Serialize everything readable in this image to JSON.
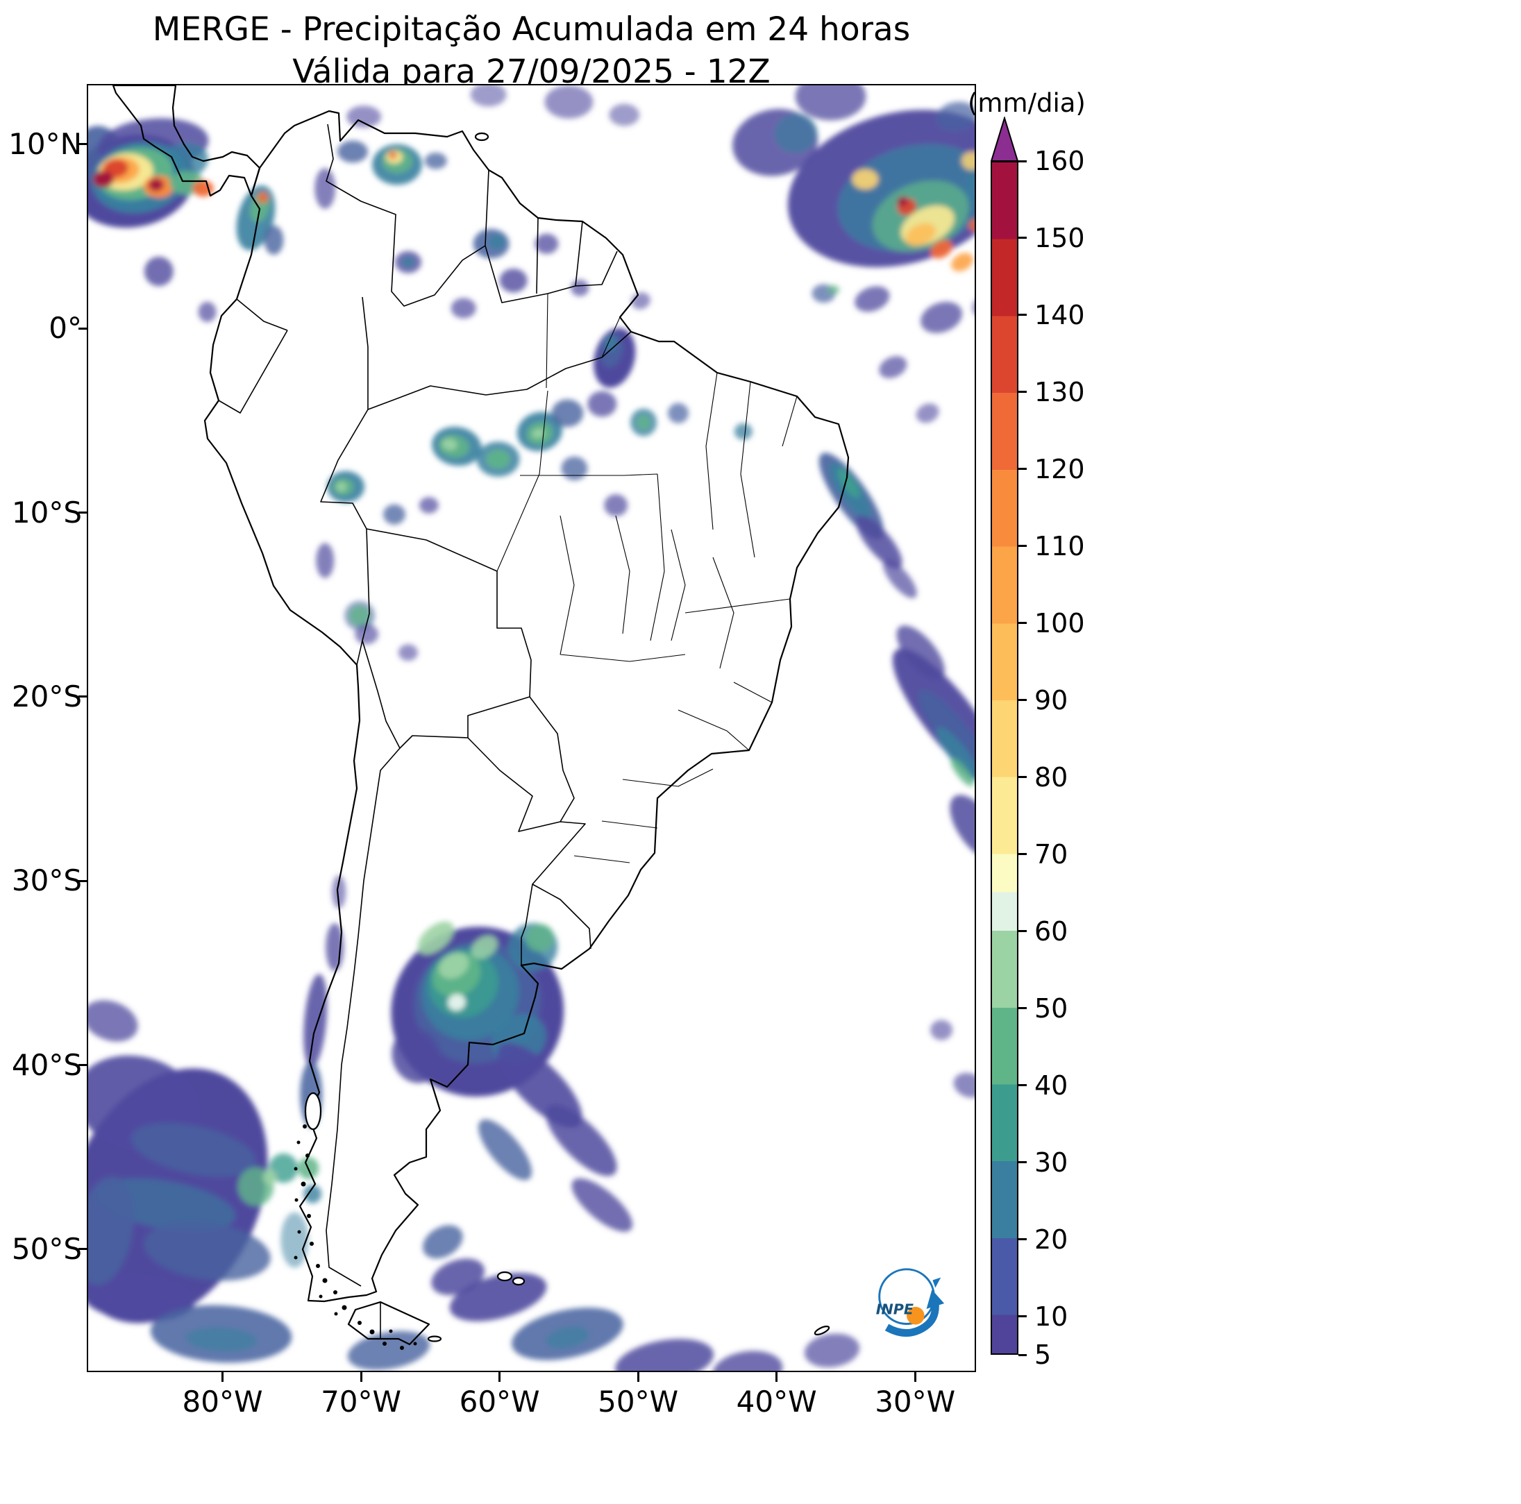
{
  "title": {
    "line1": "MERGE - Precipitação Acumulada em 24 horas",
    "line2": "Válida para 27/09/2025 - 12Z"
  },
  "logo": {
    "text": "INPE"
  },
  "map": {
    "extent": {
      "lon_min": -89.7,
      "lon_max": -25.7,
      "lat_min": -56.6,
      "lat_max": 13.2
    },
    "lat_ticks": [
      {
        "label": "10°N",
        "lat": 10
      },
      {
        "label": "0°",
        "lat": 0
      },
      {
        "label": "10°S",
        "lat": -10
      },
      {
        "label": "20°S",
        "lat": -20
      },
      {
        "label": "30°S",
        "lat": -30
      },
      {
        "label": "40°S",
        "lat": -40
      },
      {
        "label": "50°S",
        "lat": -50
      }
    ],
    "lon_ticks": [
      {
        "label": "80°W",
        "lon": -80
      },
      {
        "label": "70°W",
        "lon": -70
      },
      {
        "label": "60°W",
        "lon": -60
      },
      {
        "label": "50°W",
        "lon": -50
      },
      {
        "label": "40°W",
        "lon": -40
      },
      {
        "label": "30°W",
        "lon": -30
      }
    ]
  },
  "colorbar": {
    "unit_label": "(mm/dia)",
    "vmin": 5,
    "vmax": 160,
    "tick_values": [
      160,
      150,
      140,
      130,
      120,
      110,
      100,
      90,
      80,
      70,
      60,
      50,
      40,
      30,
      20,
      10,
      5
    ],
    "over_color": "#8c2d91",
    "segments": [
      {
        "from": 5,
        "to": 10,
        "color": "#4f4499"
      },
      {
        "from": 10,
        "to": 20,
        "color": "#4a5aa8"
      },
      {
        "from": 20,
        "to": 30,
        "color": "#3a7fa0"
      },
      {
        "from": 30,
        "to": 40,
        "color": "#3c9d8f"
      },
      {
        "from": 40,
        "to": 50,
        "color": "#5fb588"
      },
      {
        "from": 50,
        "to": 60,
        "color": "#9cd3a4"
      },
      {
        "from": 60,
        "to": 65,
        "color": "#e1f3e5"
      },
      {
        "from": 65,
        "to": 70,
        "color": "#fbfbc3"
      },
      {
        "from": 70,
        "to": 80,
        "color": "#fdea94"
      },
      {
        "from": 80,
        "to": 90,
        "color": "#fdd572"
      },
      {
        "from": 90,
        "to": 100,
        "color": "#fdbd59"
      },
      {
        "from": 100,
        "to": 110,
        "color": "#fca448"
      },
      {
        "from": 110,
        "to": 120,
        "color": "#f98b3d"
      },
      {
        "from": 120,
        "to": 130,
        "color": "#ef6a37"
      },
      {
        "from": 130,
        "to": 140,
        "color": "#dc462f"
      },
      {
        "from": 140,
        "to": 150,
        "color": "#c32728"
      },
      {
        "from": 150,
        "to": 160,
        "color": "#a3123e"
      }
    ]
  },
  "palette": {
    "b1": "#4f4a9e",
    "b2": "#47619f",
    "t": "#38809f",
    "tg": "#3c9d8f",
    "g": "#5fb588",
    "lg": "#9cd3a4",
    "pc": "#e8f6ef",
    "py": "#fbfbc3",
    "y": "#fdea94",
    "yo": "#fdd572",
    "o": "#fdbd59",
    "do": "#fca448",
    "ro": "#f98b3d",
    "r1": "#ef6a37",
    "r2": "#dc462f",
    "r3": "#c32728",
    "dr": "#a3123e",
    "mg": "#8c2d91"
  },
  "precipitation": [
    [
      -86.5,
      8.0,
      9,
      5,
      -10,
      "b1",
      1
    ],
    [
      -89.0,
      9.5,
      3.5,
      3,
      0,
      "b2",
      0.9
    ],
    [
      -85.0,
      10.0,
      8,
      2.8,
      -5,
      "b1",
      0.85
    ],
    [
      -83.0,
      9.0,
      4,
      2,
      -15,
      "t",
      0.8
    ],
    [
      -86.0,
      8.2,
      7,
      3.8,
      -10,
      "t",
      0.95
    ],
    [
      -86.3,
      8.4,
      5.5,
      2.8,
      -10,
      "g",
      0.95
    ],
    [
      -87.0,
      8.5,
      4,
      2,
      -5,
      "y",
      0.95
    ],
    [
      -87.4,
      8.6,
      2.8,
      1.4,
      -5,
      "do",
      0.95
    ],
    [
      -87.7,
      8.7,
      1.8,
      1.0,
      -5,
      "r2",
      1
    ],
    [
      -88.6,
      8.1,
      1.5,
      0.9,
      0,
      "dr",
      1
    ],
    [
      -84.6,
      7.7,
      2.2,
      1.2,
      0,
      "ro",
      1
    ],
    [
      -84.8,
      7.8,
      1.1,
      0.7,
      0,
      "dr",
      1
    ],
    [
      -82.6,
      7.9,
      2.5,
      1.3,
      0,
      "g",
      0.9
    ],
    [
      -81.4,
      7.6,
      1.5,
      0.9,
      0,
      "r1",
      0.95
    ],
    [
      -77.6,
      6.0,
      2.6,
      3.6,
      15,
      "t",
      0.9
    ],
    [
      -77.3,
      6.6,
      1.3,
      1.7,
      15,
      "g",
      0.9
    ],
    [
      -77.1,
      7.1,
      0.8,
      0.6,
      0,
      "r1",
      0.9
    ],
    [
      -76.3,
      4.8,
      1.4,
      1.6,
      0,
      "b2",
      0.8
    ],
    [
      -84.6,
      3.1,
      2.1,
      1.6,
      0,
      "b1",
      0.8
    ],
    [
      -81.1,
      0.9,
      1.3,
      1.1,
      0,
      "b1",
      0.7
    ],
    [
      -67.4,
      8.9,
      3.6,
      2.2,
      0,
      "t",
      0.9
    ],
    [
      -67.4,
      9.1,
      2.2,
      1.3,
      0,
      "g",
      0.9
    ],
    [
      -67.6,
      9.3,
      1.2,
      0.7,
      0,
      "y",
      0.95
    ],
    [
      -67.7,
      9.4,
      0.6,
      0.4,
      0,
      "r1",
      0.95
    ],
    [
      -70.6,
      9.6,
      2.2,
      1.2,
      0,
      "b2",
      0.8
    ],
    [
      -64.6,
      9.1,
      1.6,
      0.9,
      0,
      "b2",
      0.75
    ],
    [
      -72.6,
      7.6,
      1.5,
      2.2,
      0,
      "b1",
      0.7
    ],
    [
      -69.8,
      11.5,
      2.5,
      1.2,
      0,
      "b1",
      0.6
    ],
    [
      -60.6,
      4.6,
      2.6,
      1.6,
      0,
      "b2",
      0.85
    ],
    [
      -60.2,
      4.7,
      1.2,
      0.8,
      0,
      "t",
      0.8
    ],
    [
      -59.0,
      2.6,
      2.0,
      1.3,
      0,
      "b1",
      0.8
    ],
    [
      -56.6,
      4.6,
      1.7,
      1.1,
      0,
      "b1",
      0.75
    ],
    [
      -62.6,
      1.1,
      1.8,
      1.1,
      0,
      "b1",
      0.7
    ],
    [
      -66.6,
      3.6,
      1.9,
      1.2,
      0,
      "b1",
      0.8
    ],
    [
      -66.6,
      3.6,
      0.9,
      0.6,
      0,
      "t",
      0.8
    ],
    [
      -55.0,
      12.3,
      3.5,
      1.8,
      0,
      "b1",
      0.6
    ],
    [
      -60.8,
      12.7,
      2.6,
      1.3,
      0,
      "b1",
      0.55
    ],
    [
      -51.0,
      11.6,
      2.2,
      1.2,
      0,
      "b1",
      0.55
    ],
    [
      -51.7,
      -1.6,
      2.9,
      3.3,
      15,
      "b1",
      1
    ],
    [
      -51.9,
      -1.2,
      1.6,
      1.9,
      15,
      "b2",
      0.9
    ],
    [
      -52.0,
      -0.8,
      0.8,
      0.9,
      0,
      "t",
      0.8
    ],
    [
      -54.2,
      2.2,
      1.3,
      0.9,
      0,
      "b1",
      0.7
    ],
    [
      -49.8,
      1.5,
      1.4,
      0.9,
      -20,
      "b1",
      0.6
    ],
    [
      -63.1,
      -6.4,
      3.6,
      2.1,
      10,
      "t",
      0.9
    ],
    [
      -63.3,
      -6.4,
      2.2,
      1.2,
      10,
      "g",
      0.9
    ],
    [
      -63.6,
      -6.3,
      1.1,
      0.6,
      10,
      "lg",
      0.95
    ],
    [
      -60.1,
      -7.1,
      3.1,
      1.9,
      0,
      "t",
      0.85
    ],
    [
      -60.1,
      -7.1,
      1.7,
      1.0,
      0,
      "g",
      0.9
    ],
    [
      -57.1,
      -5.6,
      3.3,
      2.1,
      -15,
      "t",
      0.9
    ],
    [
      -57.1,
      -5.7,
      1.9,
      1.2,
      -15,
      "g",
      0.9
    ],
    [
      -57.2,
      -5.7,
      0.9,
      0.5,
      -15,
      "lg",
      0.95
    ],
    [
      -55.1,
      -4.6,
      2.3,
      1.5,
      0,
      "b2",
      0.8
    ],
    [
      -52.6,
      -4.1,
      2.1,
      1.4,
      0,
      "b1",
      0.75
    ],
    [
      -54.6,
      -7.6,
      1.9,
      1.3,
      0,
      "b2",
      0.75
    ],
    [
      -51.6,
      -9.6,
      1.7,
      1.2,
      0,
      "b1",
      0.7
    ],
    [
      -49.6,
      -5.1,
      1.9,
      1.5,
      0,
      "t",
      0.8
    ],
    [
      -49.6,
      -5.1,
      1.0,
      0.8,
      0,
      "g",
      0.8
    ],
    [
      -47.1,
      -4.6,
      1.5,
      1.1,
      0,
      "b2",
      0.7
    ],
    [
      -42.4,
      -5.6,
      1.3,
      0.9,
      0,
      "t",
      0.75
    ],
    [
      -71.1,
      -8.6,
      2.7,
      1.7,
      0,
      "t",
      0.9
    ],
    [
      -71.3,
      -8.6,
      1.5,
      0.9,
      0,
      "g",
      0.9
    ],
    [
      -71.4,
      -8.6,
      0.7,
      0.5,
      0,
      "lg",
      0.95
    ],
    [
      -67.6,
      -10.1,
      1.6,
      1.1,
      0,
      "b2",
      0.75
    ],
    [
      -65.1,
      -9.6,
      1.4,
      0.9,
      0,
      "b1",
      0.7
    ],
    [
      -72.6,
      -12.6,
      1.3,
      1.9,
      0,
      "b1",
      0.7
    ],
    [
      -70.1,
      -15.6,
      2.2,
      1.6,
      0,
      "b2",
      0.6
    ],
    [
      -70.1,
      -15.6,
      1.5,
      1.1,
      0,
      "g",
      0.8
    ],
    [
      -69.6,
      -16.6,
      1.7,
      1.1,
      0,
      "b1",
      0.65
    ],
    [
      -66.6,
      -17.6,
      1.4,
      0.9,
      0,
      "b1",
      0.6
    ],
    [
      -34.6,
      -9.1,
      2.3,
      5.6,
      -35,
      "b2",
      0.9
    ],
    [
      -34.7,
      -8.8,
      1.5,
      3.6,
      -35,
      "t",
      0.9
    ],
    [
      -34.8,
      -8.4,
      0.9,
      1.9,
      -35,
      "tg",
      0.95
    ],
    [
      -32.6,
      -11.6,
      1.7,
      3.6,
      -40,
      "b1",
      0.85
    ],
    [
      -31.1,
      -13.6,
      1.3,
      2.6,
      -40,
      "b1",
      0.7
    ],
    [
      -27.6,
      -21.1,
      3.6,
      9.2,
      -38,
      "b1",
      0.95
    ],
    [
      -27.1,
      -22.1,
      2.1,
      6.2,
      -38,
      "b2",
      0.85
    ],
    [
      -26.9,
      -23.1,
      1.3,
      3.6,
      -38,
      "t",
      0.85
    ],
    [
      -26.6,
      -24.1,
      0.8,
      1.9,
      -38,
      "g",
      0.85
    ],
    [
      -29.6,
      -17.6,
      2.1,
      3.6,
      -40,
      "b1",
      0.8
    ],
    [
      -25.6,
      -27.1,
      2.6,
      4.1,
      -35,
      "b1",
      0.85
    ],
    [
      -28.1,
      -38.1,
      1.6,
      1.1,
      0,
      "b1",
      0.6
    ],
    [
      -26.1,
      -41.1,
      2.3,
      1.3,
      20,
      "b1",
      0.65
    ],
    [
      -61.6,
      -37.1,
      12.5,
      9.2,
      -20,
      "b1",
      1
    ],
    [
      -61.6,
      -36.6,
      9.2,
      6.6,
      -20,
      "b2",
      0.9
    ],
    [
      -62.1,
      -36.1,
      7.1,
      5.1,
      -25,
      "t",
      0.85
    ],
    [
      -62.6,
      -35.6,
      5.1,
      3.6,
      -30,
      "tg",
      0.85
    ],
    [
      -63.1,
      -35.1,
      3.6,
      2.3,
      -30,
      "g",
      0.9
    ],
    [
      -63.3,
      -34.6,
      2.3,
      1.3,
      -30,
      "lg",
      0.95
    ],
    [
      -63.1,
      -36.6,
      1.3,
      0.9,
      -20,
      "pc",
      0.95
    ],
    [
      -64.6,
      -33.1,
      3.1,
      1.3,
      -40,
      "lg",
      0.9
    ],
    [
      -61.1,
      -33.6,
      2.1,
      1.1,
      -35,
      "lg",
      0.85
    ],
    [
      -57.6,
      -33.6,
      3.6,
      2.6,
      -20,
      "t",
      0.8
    ],
    [
      -57.1,
      -33.1,
      2.1,
      1.5,
      -20,
      "g",
      0.8
    ],
    [
      -58.6,
      -38.6,
      4.1,
      2.6,
      -30,
      "t",
      0.8
    ],
    [
      -57.1,
      -41.1,
      3.1,
      6.1,
      -45,
      "b1",
      0.9
    ],
    [
      -54.1,
      -44.1,
      2.6,
      5.1,
      -45,
      "b1",
      0.85
    ],
    [
      -59.6,
      -44.6,
      2.1,
      4.1,
      -40,
      "b2",
      0.8
    ],
    [
      -52.6,
      -47.6,
      2.1,
      4.1,
      -50,
      "b1",
      0.8
    ],
    [
      -66.0,
      -39.5,
      3.5,
      3.0,
      -20,
      "b1",
      0.85
    ],
    [
      -73.3,
      -37.6,
      1.6,
      5.1,
      5,
      "b1",
      0.85
    ],
    [
      -73.6,
      -41.6,
      1.6,
      3.6,
      0,
      "b2",
      0.85
    ],
    [
      -73.5,
      -42.6,
      0.9,
      1.6,
      0,
      "t",
      0.85
    ],
    [
      -71.9,
      -33.6,
      1.3,
      2.6,
      0,
      "b1",
      0.75
    ],
    [
      -71.6,
      -30.6,
      1.0,
      1.8,
      0,
      "b1",
      0.6
    ],
    [
      -84.1,
      -47.1,
      13.5,
      14.5,
      25,
      "b1",
      1
    ],
    [
      -86.1,
      -42.1,
      9.2,
      5.1,
      15,
      "b1",
      0.9
    ],
    [
      -82.1,
      -44.6,
      9.2,
      2.6,
      12,
      "b2",
      0.8
    ],
    [
      -84.1,
      -47.6,
      10.2,
      2.6,
      10,
      "t",
      0.55
    ],
    [
      -81.1,
      -50.1,
      9.2,
      3.1,
      8,
      "b2",
      0.8
    ],
    [
      -77.6,
      -46.6,
      2.6,
      2.1,
      0,
      "g",
      0.8
    ],
    [
      -75.6,
      -45.6,
      2.1,
      1.6,
      0,
      "tg",
      0.8
    ],
    [
      -76.6,
      -46.1,
      1.0,
      0.8,
      0,
      "lg",
      0.85
    ],
    [
      -73.8,
      -45.6,
      1.5,
      1.2,
      0,
      "g",
      0.85
    ],
    [
      -73.5,
      -47.0,
      1.3,
      1.0,
      0,
      "t",
      0.8
    ],
    [
      -86.1,
      -52.6,
      8.2,
      2.6,
      5,
      "b1",
      0.9
    ],
    [
      -80.1,
      -54.6,
      10.2,
      3.1,
      3,
      "b2",
      0.85
    ],
    [
      -80.1,
      -54.9,
      5.1,
      1.3,
      3,
      "t",
      0.6
    ],
    [
      -88.1,
      -37.6,
      4.1,
      2.1,
      20,
      "b1",
      0.75
    ],
    [
      -88.5,
      -49.0,
      4.0,
      6.0,
      10,
      "b2",
      0.85
    ],
    [
      -74.8,
      -49.5,
      2.0,
      3.0,
      0,
      "t",
      0.5
    ],
    [
      -68.0,
      -55.5,
      6.0,
      2.0,
      -10,
      "b2",
      0.8
    ],
    [
      -63.0,
      -51.5,
      4.0,
      1.8,
      -20,
      "b1",
      0.85
    ],
    [
      -60.1,
      -52.6,
      7.2,
      2.3,
      -15,
      "b1",
      0.9
    ],
    [
      -55.1,
      -54.6,
      8.2,
      2.6,
      -12,
      "b2",
      0.85
    ],
    [
      -48.1,
      -56.1,
      7.2,
      2.3,
      -10,
      "b1",
      0.85
    ],
    [
      -64.1,
      -49.6,
      3.1,
      1.6,
      -30,
      "b2",
      0.8
    ],
    [
      -55.1,
      -54.8,
      3.1,
      1.1,
      -12,
      "t",
      0.6
    ],
    [
      -42.1,
      -56.6,
      5.1,
      2.1,
      -8,
      "b1",
      0.8
    ],
    [
      -36.0,
      -55.5,
      4.0,
      1.8,
      -8,
      "b1",
      0.7
    ],
    [
      -31.1,
      7.6,
      16.5,
      8.2,
      -15,
      "b1",
      0.95
    ],
    [
      -30.1,
      7.1,
      11.2,
      5.6,
      -15,
      "t",
      0.75
    ],
    [
      -29.6,
      6.1,
      7.2,
      3.6,
      -20,
      "g",
      0.75
    ],
    [
      -29.1,
      5.6,
      4.1,
      1.9,
      -25,
      "y",
      0.9
    ],
    [
      -29.6,
      5.1,
      2.3,
      1.1,
      -25,
      "o",
      0.9
    ],
    [
      -30.6,
      6.6,
      1.4,
      0.9,
      -20,
      "r2",
      0.95
    ],
    [
      -28.1,
      4.3,
      1.7,
      0.9,
      -30,
      "r1",
      0.95
    ],
    [
      -30.9,
      6.9,
      0.8,
      0.5,
      -20,
      "dr",
      1
    ],
    [
      -33.6,
      8.1,
      1.9,
      1.1,
      0,
      "yo",
      0.9
    ],
    [
      -26.6,
      3.6,
      1.7,
      0.9,
      -30,
      "do",
      0.9
    ],
    [
      -40.1,
      10.1,
      6.2,
      3.6,
      -10,
      "b1",
      0.85
    ],
    [
      -38.6,
      10.6,
      3.1,
      2.1,
      -10,
      "t",
      0.6
    ],
    [
      -33.1,
      1.6,
      2.6,
      1.3,
      -20,
      "b1",
      0.75
    ],
    [
      -36.6,
      1.9,
      1.7,
      1.0,
      0,
      "b2",
      0.7
    ],
    [
      -35.9,
      2.1,
      0.9,
      0.5,
      0,
      "g",
      0.7
    ],
    [
      -28.1,
      0.6,
      3.1,
      1.6,
      -20,
      "b1",
      0.75
    ],
    [
      -31.6,
      -2.1,
      2.1,
      1.1,
      -25,
      "b1",
      0.7
    ],
    [
      -29.1,
      -4.6,
      1.7,
      1.0,
      -25,
      "b1",
      0.6
    ],
    [
      -36.1,
      12.6,
      5.1,
      2.6,
      0,
      "b1",
      0.75
    ],
    [
      -25.9,
      9.1,
      1.5,
      1.0,
      0,
      "yo",
      0.85
    ],
    [
      -25.6,
      5.6,
      1.1,
      0.7,
      0,
      "r1",
      0.85
    ],
    [
      -25.1,
      7.6,
      2.6,
      2.1,
      0,
      "t",
      0.6
    ],
    [
      -27.0,
      11.5,
      3.0,
      1.6,
      -10,
      "b2",
      0.7
    ],
    [
      -24.8,
      1.2,
      2.2,
      1.3,
      -15,
      "b1",
      0.6
    ]
  ]
}
